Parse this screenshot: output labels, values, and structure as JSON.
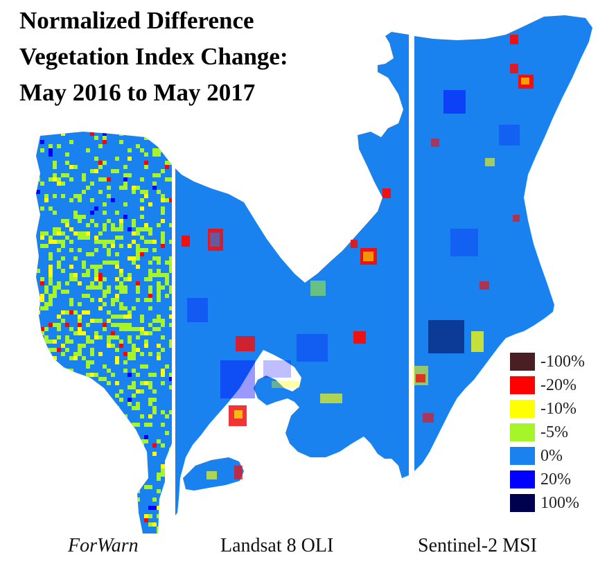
{
  "title": {
    "line1": "Normalized Difference",
    "line2": "Vegetation Index Change:",
    "line3": "May 2016 to May 2017"
  },
  "panels": [
    {
      "label": "ForWarn"
    },
    {
      "label": "Landsat 8 OLI"
    },
    {
      "label": "Sentinel-2 MSI"
    }
  ],
  "legend": [
    {
      "label": "-100%",
      "color": "#4a1f24"
    },
    {
      "label": "-20%",
      "color": "#ff0000"
    },
    {
      "label": "-10%",
      "color": "#ffff00"
    },
    {
      "label": "-5%",
      "color": "#a6f52a"
    },
    {
      "label": "0%",
      "color": "#1a82ee"
    },
    {
      "label": "20%",
      "color": "#0000ff"
    },
    {
      "label": "100%",
      "color": "#000050"
    }
  ],
  "colors": {
    "base": "#1a82ee",
    "divider": "#ffffff"
  }
}
